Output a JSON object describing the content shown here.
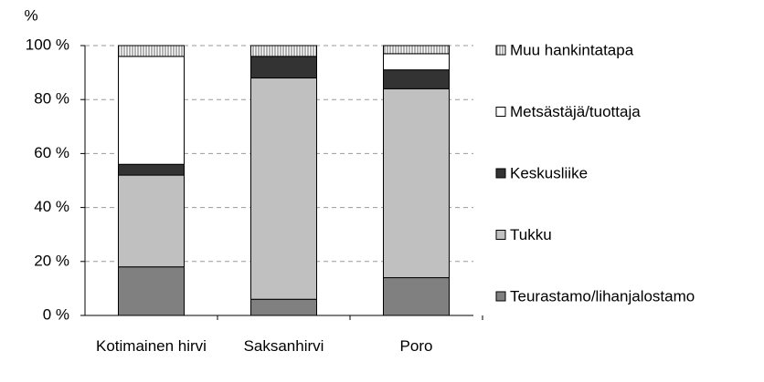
{
  "chart_data": {
    "type": "stacked-bar",
    "y_label": "%",
    "categories": [
      "Kotimainen hirvi",
      "Saksanhirvi",
      "Poro"
    ],
    "series": [
      {
        "name": "Teurastamo/lihanjalostamo",
        "color": "#808080",
        "values": [
          18,
          6,
          14
        ]
      },
      {
        "name": "Tukku",
        "color": "#c0c0c0",
        "values": [
          34,
          82,
          70
        ]
      },
      {
        "name": "Keskusliike",
        "color": "#333333",
        "values": [
          4,
          8,
          7
        ]
      },
      {
        "name": "Metsästäjä/tuottaja",
        "color": "#ffffff",
        "values": [
          40,
          0,
          6
        ]
      },
      {
        "name": "Muu hankintatapa",
        "color": "#808080",
        "hatch": true,
        "values": [
          4,
          4,
          3
        ]
      }
    ],
    "ylim": [
      0,
      100
    ],
    "yticks": [
      {
        "value": 0,
        "label": "0 %"
      },
      {
        "value": 20,
        "label": "20 %"
      },
      {
        "value": 40,
        "label": "40 %"
      },
      {
        "value": 60,
        "label": "60 %"
      },
      {
        "value": 80,
        "label": "80 %"
      },
      {
        "value": 100,
        "label": "100 %"
      }
    ],
    "grid": true
  }
}
